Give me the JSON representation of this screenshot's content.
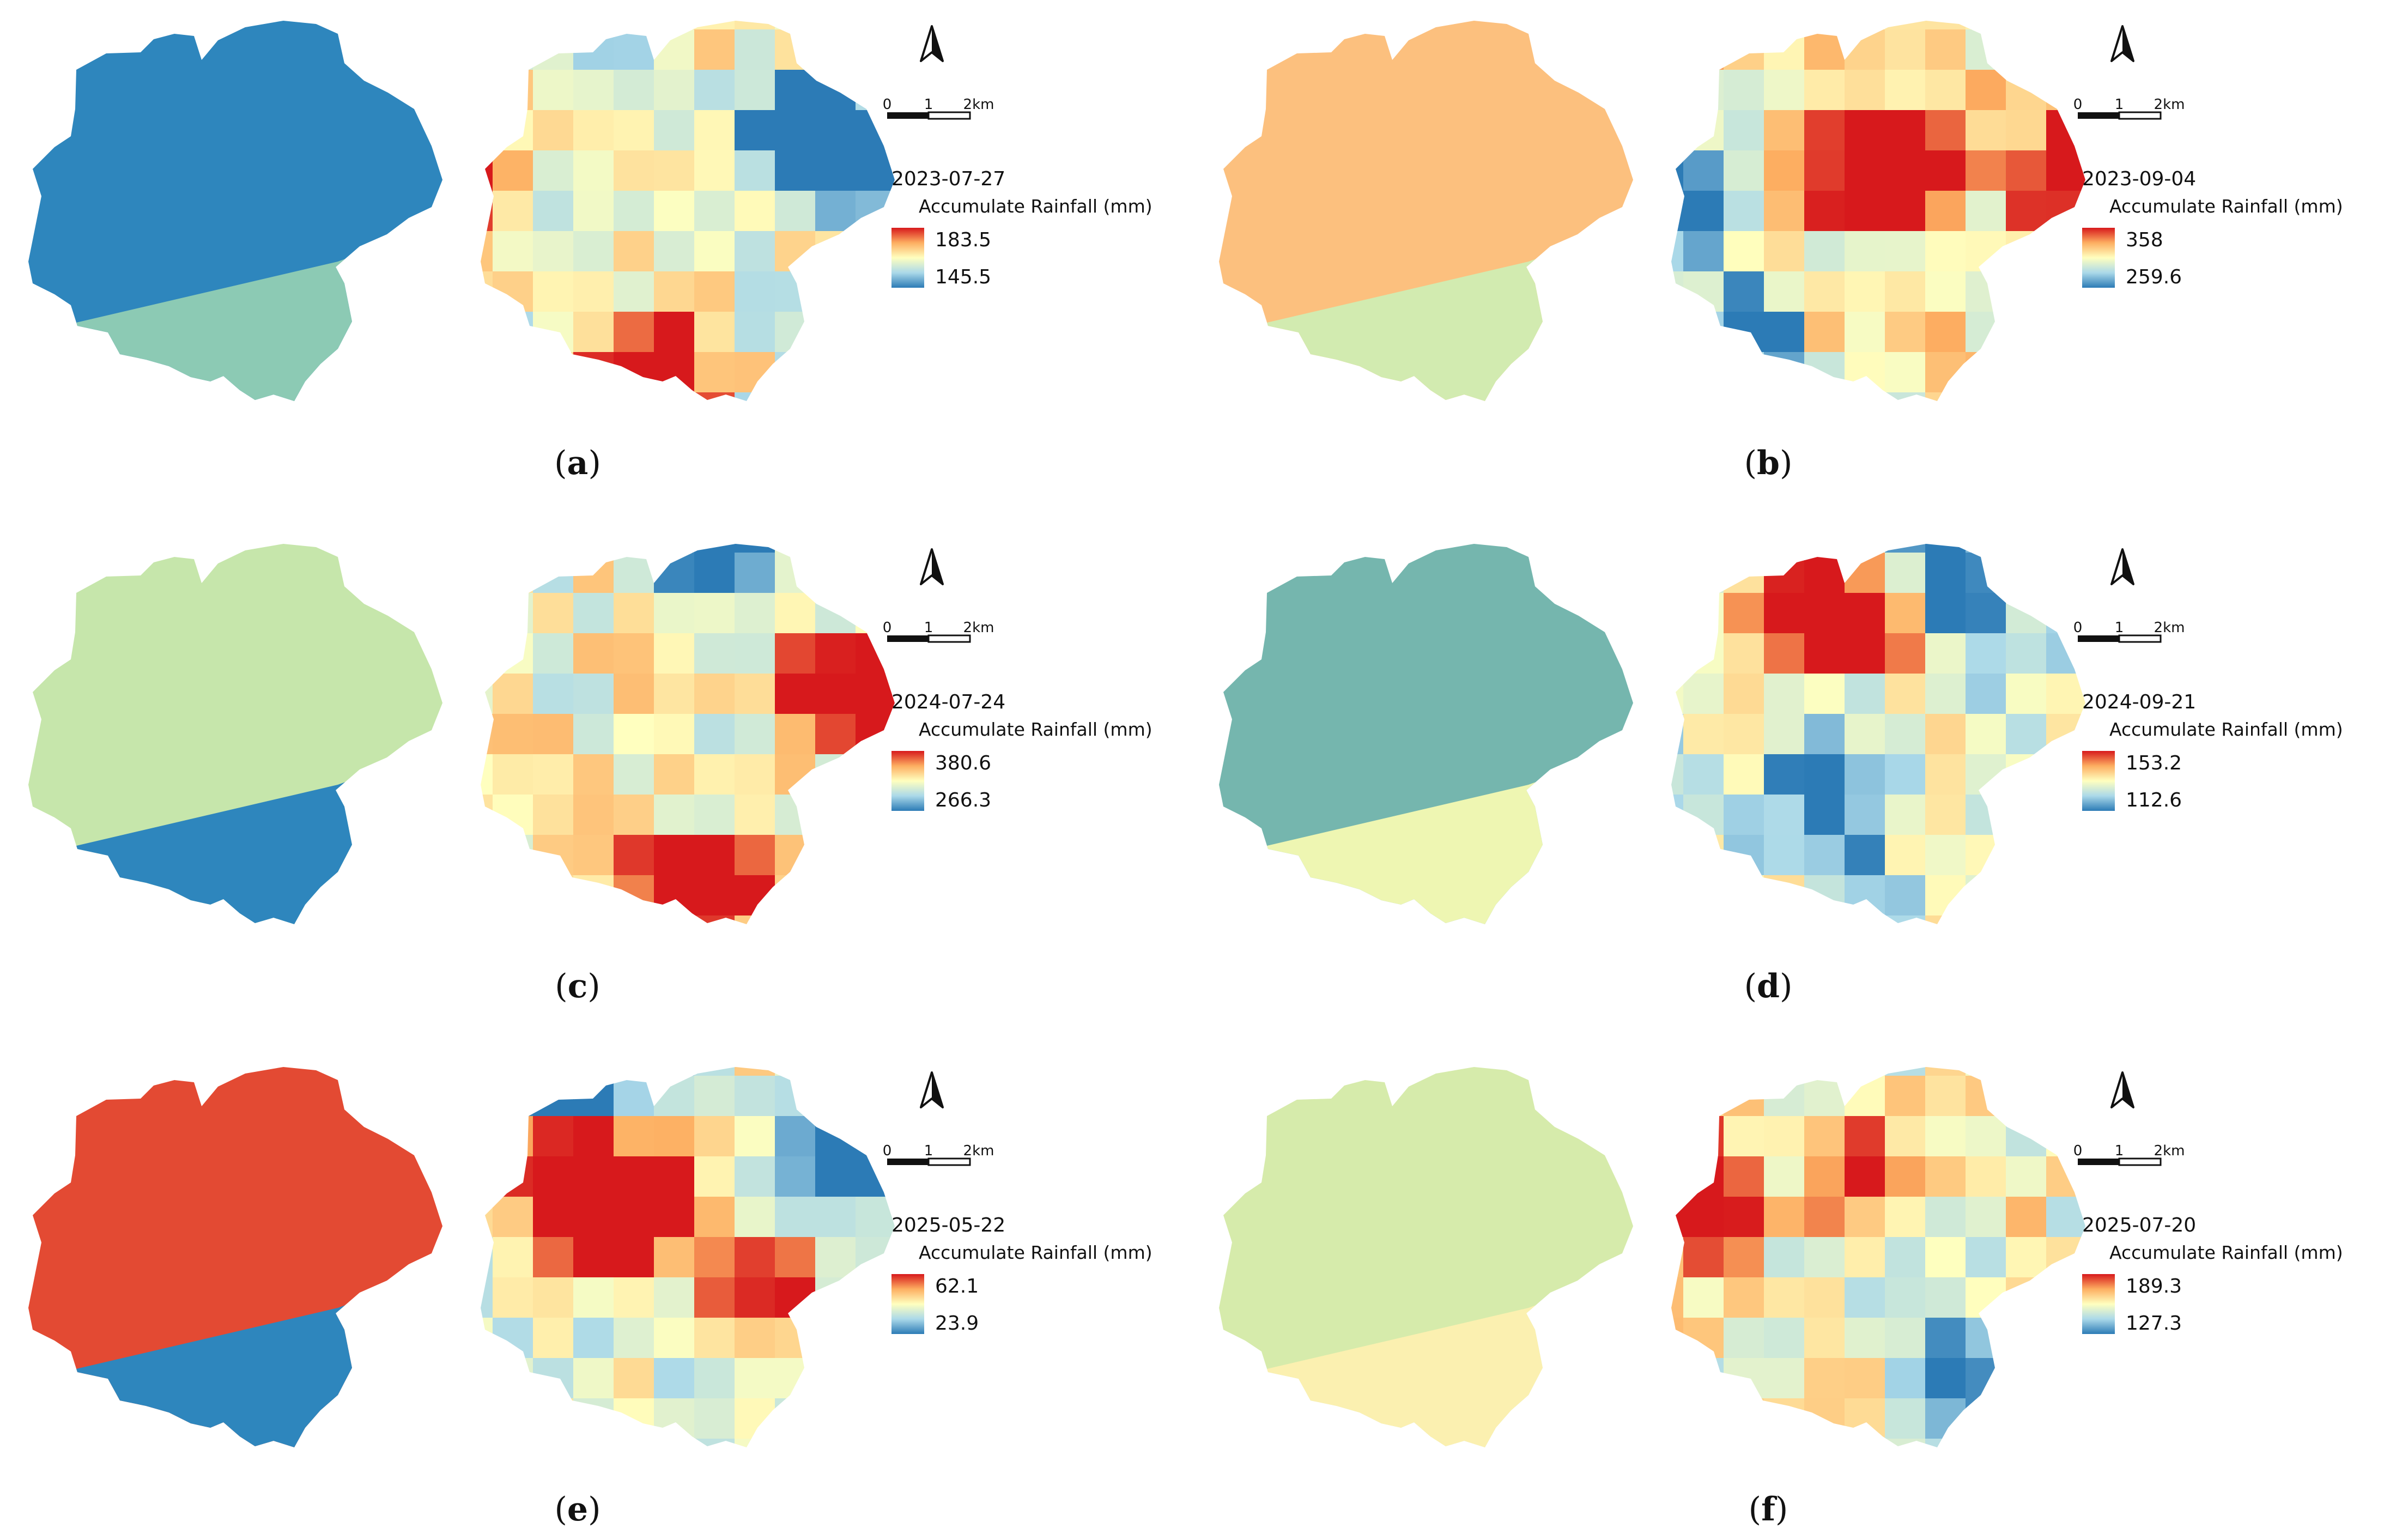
{
  "figure": {
    "scale_bar": {
      "tick_labels": [
        "0",
        "1",
        "2km"
      ]
    },
    "legend_title": "Accumulate Rainfall (mm)",
    "north_arrow_icon": "north-arrow-icon",
    "ramp": [
      "#2c7bb6",
      "#abd9e9",
      "#ffffbf",
      "#fdae61",
      "#d7191c"
    ]
  },
  "panels": [
    {
      "id": "a",
      "caption_letter": "a",
      "date": "2023-07-27",
      "max": "183.5",
      "min": "145.5",
      "thiessen": {
        "upper": "#2e86bd",
        "lower": "#8ccab4"
      },
      "grid_seed": 1,
      "hot": [
        [
          4,
          9
        ],
        [
          5,
          9
        ],
        [
          0,
          4
        ]
      ],
      "cold": [
        [
          10,
          3
        ],
        [
          9,
          4
        ],
        [
          8,
          3
        ]
      ],
      "bias": 0.45
    },
    {
      "id": "b",
      "caption_letter": "b",
      "date": "2023-09-04",
      "max": "358",
      "min": "259.6",
      "thiessen": {
        "upper": "#fcc07e",
        "lower": "#d2ebb0"
      },
      "grid_seed": 2,
      "hot": [
        [
          10,
          4
        ],
        [
          11,
          4
        ],
        [
          6,
          4
        ],
        [
          5,
          4
        ]
      ],
      "cold": [
        [
          0,
          5
        ],
        [
          2,
          8
        ]
      ],
      "bias": 0.55
    },
    {
      "id": "c",
      "caption_letter": "c",
      "date": "2024-07-24",
      "max": "380.6",
      "min": "266.3",
      "thiessen": {
        "upper": "#c6e6ab",
        "lower": "#2e86bd"
      },
      "grid_seed": 3,
      "hot": [
        [
          10,
          4
        ],
        [
          9,
          4
        ],
        [
          5,
          9
        ],
        [
          6,
          9
        ]
      ],
      "cold": [
        [
          5,
          0
        ],
        [
          6,
          0
        ]
      ],
      "bias": 0.5
    },
    {
      "id": "d",
      "caption_letter": "d",
      "date": "2024-09-21",
      "max": "153.2",
      "min": "112.6",
      "thiessen": {
        "upper": "#75b6ae",
        "lower": "#eef6b2"
      },
      "grid_seed": 4,
      "hot": [
        [
          5,
          2
        ],
        [
          4,
          2
        ],
        [
          3,
          2
        ]
      ],
      "cold": [
        [
          4,
          7
        ],
        [
          7,
          1
        ]
      ],
      "bias": 0.42
    },
    {
      "id": "e",
      "caption_letter": "e",
      "date": "2025-05-22",
      "max": "62.1",
      "min": "23.9",
      "thiessen": {
        "upper": "#e34a33",
        "lower": "#2e86bd"
      },
      "grid_seed": 5,
      "hot": [
        [
          4,
          4
        ],
        [
          3,
          4
        ],
        [
          4,
          3
        ],
        [
          2,
          3
        ],
        [
          7,
          6
        ]
      ],
      "cold": [
        [
          2,
          0
        ],
        [
          3,
          0
        ],
        [
          9,
          2
        ],
        [
          10,
          2
        ]
      ],
      "bias": 0.45
    },
    {
      "id": "f",
      "caption_letter": "f",
      "date": "2025-07-20",
      "max": "189.3",
      "min": "127.3",
      "thiessen": {
        "upper": "#d6ebab",
        "lower": "#fbf0b0"
      },
      "grid_seed": 6,
      "hot": [
        [
          0,
          3
        ],
        [
          5,
          3
        ],
        [
          1,
          4
        ]
      ],
      "cold": [
        [
          7,
          8
        ]
      ],
      "bias": 0.5
    }
  ]
}
